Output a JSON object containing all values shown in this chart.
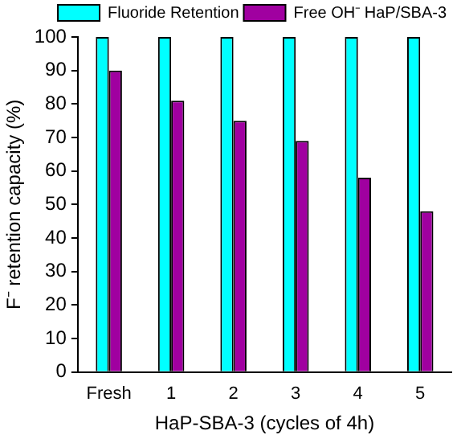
{
  "chart_data": {
    "type": "bar",
    "xlabel": "HaP-SBA-3 (cycles of 4h)",
    "ylabel": "F⁻ retention capacity (%)",
    "categories": [
      "Fresh",
      "1",
      "2",
      "3",
      "4",
      "5"
    ],
    "series": [
      {
        "name": "Fluoride Retention",
        "color": "#00ffff",
        "values": [
          100,
          100,
          100,
          100,
          100,
          100
        ]
      },
      {
        "name": "Free OH⁻ HaP/SBA-3",
        "color": "#a000a0",
        "values": [
          90,
          81,
          75,
          69,
          58,
          48
        ]
      }
    ],
    "ylim": [
      0,
      100
    ],
    "yticks": [
      0,
      10,
      20,
      30,
      40,
      50,
      60,
      70,
      80,
      90,
      100
    ],
    "grid": false,
    "legend": "top right"
  }
}
